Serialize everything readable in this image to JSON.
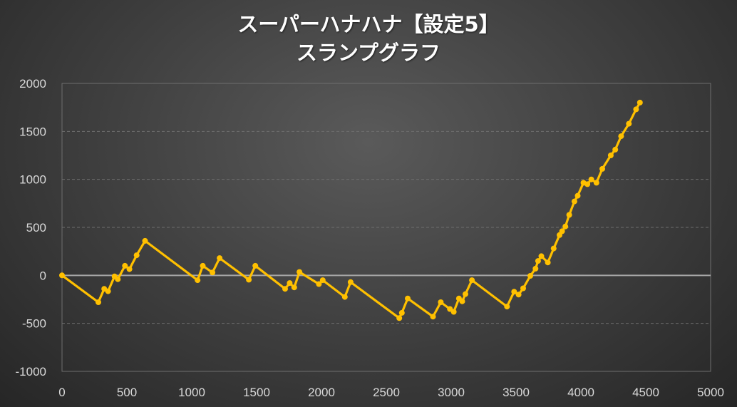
{
  "chart_data": {
    "type": "line",
    "title": "スーパーハナハナ【設定5】",
    "subtitle": "スランプグラフ",
    "xlabel": "",
    "ylabel": "",
    "xlim": [
      0,
      5000
    ],
    "ylim": [
      -1000,
      2000
    ],
    "x_ticks": [
      "0",
      "500",
      "1000",
      "1500",
      "2000",
      "2500",
      "3000",
      "3500",
      "4000",
      "4500",
      "5000"
    ],
    "y_ticks": [
      "2000",
      "1500",
      "1000",
      "500",
      "0",
      "-500",
      "-1000"
    ],
    "grid": "horizontal dashed",
    "legend": "none",
    "colors": {
      "line": "#ffc000",
      "zero_line": "#a6a6a6",
      "grid": "#6e6e6e",
      "axis_text": "#d9d9d9"
    },
    "series": [
      {
        "values": [
          [
            0,
            0
          ],
          [
            280,
            -280
          ],
          [
            325,
            -140
          ],
          [
            355,
            -165
          ],
          [
            405,
            -10
          ],
          [
            430,
            -40
          ],
          [
            485,
            100
          ],
          [
            520,
            65
          ],
          [
            575,
            210
          ],
          [
            640,
            360
          ],
          [
            1045,
            -50
          ],
          [
            1085,
            100
          ],
          [
            1160,
            30
          ],
          [
            1215,
            180
          ],
          [
            1440,
            -45
          ],
          [
            1490,
            100
          ],
          [
            1720,
            -140
          ],
          [
            1755,
            -80
          ],
          [
            1790,
            -125
          ],
          [
            1830,
            35
          ],
          [
            1980,
            -90
          ],
          [
            2010,
            -50
          ],
          [
            2180,
            -225
          ],
          [
            2225,
            -70
          ],
          [
            2600,
            -445
          ],
          [
            2620,
            -390
          ],
          [
            2665,
            -240
          ],
          [
            2860,
            -430
          ],
          [
            2920,
            -280
          ],
          [
            2990,
            -350
          ],
          [
            3020,
            -380
          ],
          [
            3060,
            -240
          ],
          [
            3085,
            -270
          ],
          [
            3110,
            -195
          ],
          [
            3160,
            -50
          ],
          [
            3430,
            -325
          ],
          [
            3485,
            -170
          ],
          [
            3520,
            -200
          ],
          [
            3555,
            -135
          ],
          [
            3610,
            -5
          ],
          [
            3650,
            70
          ],
          [
            3670,
            150
          ],
          [
            3695,
            200
          ],
          [
            3745,
            135
          ],
          [
            3790,
            280
          ],
          [
            3835,
            420
          ],
          [
            3855,
            460
          ],
          [
            3880,
            510
          ],
          [
            3910,
            630
          ],
          [
            3950,
            770
          ],
          [
            3975,
            830
          ],
          [
            4020,
            965
          ],
          [
            4050,
            950
          ],
          [
            4080,
            1000
          ],
          [
            4120,
            965
          ],
          [
            4165,
            1110
          ],
          [
            4230,
            1250
          ],
          [
            4265,
            1310
          ],
          [
            4310,
            1450
          ],
          [
            4370,
            1580
          ],
          [
            4425,
            1730
          ],
          [
            4455,
            1800
          ]
        ]
      }
    ]
  }
}
